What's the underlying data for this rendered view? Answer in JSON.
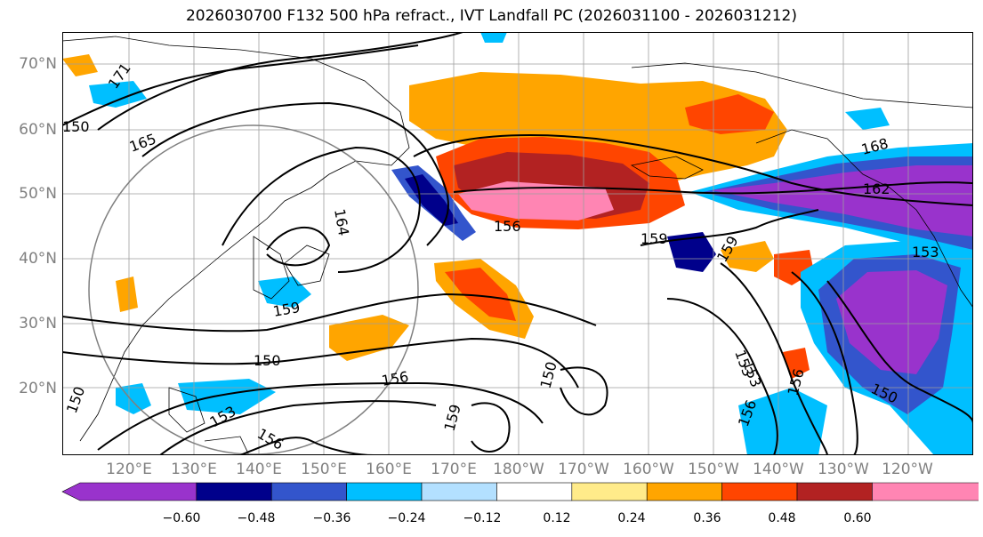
{
  "title": "2026030700 F132 500 hPa refract., IVT Landfall PC (2026031100 - 2026031212)",
  "lat_labels": [
    "70°N",
    "60°N",
    "50°N",
    "40°N",
    "30°N",
    "20°N"
  ],
  "lon_labels": [
    "120°E",
    "130°E",
    "140°E",
    "150°E",
    "160°E",
    "170°E",
    "180°W",
    "170°W",
    "160°W",
    "150°W",
    "140°W",
    "130°W",
    "120°W"
  ],
  "contour_labels": [
    "171",
    "168",
    "165",
    "164",
    "162",
    "159",
    "156",
    "153",
    "150",
    "159",
    "156",
    "153",
    "150",
    "159",
    "156",
    "153",
    "150",
    "150",
    "153",
    "156",
    "159",
    "156",
    "150"
  ],
  "colorbar": {
    "tick_labels": [
      "−0.60",
      "−0.48",
      "−0.36",
      "−0.24",
      "−0.12",
      "0.12",
      "0.24",
      "0.36",
      "0.48",
      "0.60"
    ],
    "colors": [
      "#9933cc",
      "#00008b",
      "#3355cc",
      "#00bfff",
      "#b3e0ff",
      "#ffffff",
      "#ffeb8a",
      "#ffa500",
      "#ff4500",
      "#b22222",
      "#ff85b3"
    ]
  }
}
